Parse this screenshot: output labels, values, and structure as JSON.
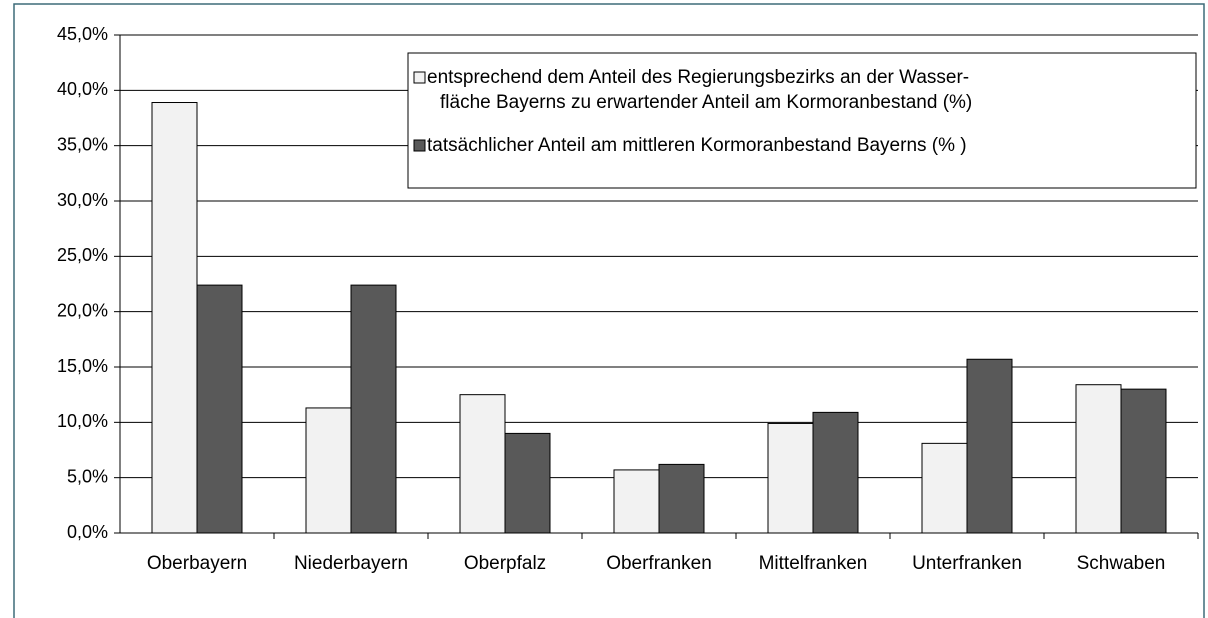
{
  "chart_data": {
    "type": "bar",
    "categories": [
      "Oberbayern",
      "Niederbayern",
      "Oberpfalz",
      "Oberfranken",
      "Mittelfranken",
      "Unterfranken",
      "Schwaben"
    ],
    "series": [
      {
        "name": "entsprechend dem Anteil  des Regierungsbezirks an der Wasser-fläche Bayerns zu erwartender Anteil am Kormoranbestand (%)",
        "color": "#f2f2f2",
        "values": [
          38.9,
          11.3,
          12.5,
          5.7,
          9.9,
          8.1,
          13.4
        ]
      },
      {
        "name": "tatsächlicher Anteil am mittleren Kormoranbestand Bayerns (% )",
        "color": "#595959",
        "values": [
          22.4,
          22.4,
          9.0,
          6.2,
          10.9,
          15.7,
          13.0
        ]
      }
    ],
    "ylim": [
      0,
      45
    ],
    "yticks": [
      {
        "value": 0,
        "label": "0,0%"
      },
      {
        "value": 5,
        "label": "5,0%"
      },
      {
        "value": 10,
        "label": "10,0%"
      },
      {
        "value": 15,
        "label": "15,0%"
      },
      {
        "value": 20,
        "label": "20,0%"
      },
      {
        "value": 25,
        "label": "25,0%"
      },
      {
        "value": 30,
        "label": "30,0%"
      },
      {
        "value": 35,
        "label": "35,0%"
      },
      {
        "value": 40,
        "label": "40,0%"
      },
      {
        "value": 45,
        "label": "45,0%"
      }
    ],
    "grid": true,
    "legend": "top-right"
  }
}
